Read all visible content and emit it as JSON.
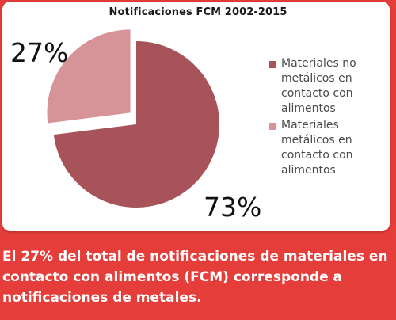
{
  "chart_data": {
    "type": "pie",
    "title": "Notificaciones FCM 2002-2015",
    "slices": [
      {
        "label": "Materiales no metálicos en contacto con alimentos",
        "value": 73,
        "display": "73%",
        "color": "#a8525a"
      },
      {
        "label": "Materiales metálicos en contacto con alimentos",
        "value": 27,
        "display": "27%",
        "color": "#d69498"
      }
    ],
    "legend_position": "right"
  },
  "footer": {
    "text": "El 27% del total de notificaciones de materiales en contacto con alimentos (FCM) corresponde a notificaciones de metales."
  },
  "colors": {
    "background": "#e53d3a",
    "card": "#ffffff"
  }
}
